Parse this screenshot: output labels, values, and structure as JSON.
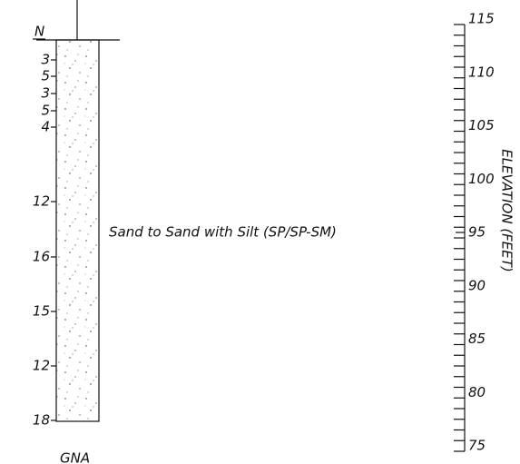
{
  "header": {
    "n_label": "N"
  },
  "blow_counts": [
    "3",
    "5",
    "3",
    "5",
    "4",
    "12",
    "16",
    "15",
    "12",
    "18"
  ],
  "layer": {
    "description": "Sand to Sand with Silt (SP/SP-SM)"
  },
  "elevation": {
    "axis_label": "ELEVATION (FEET)",
    "ticks": [
      "115",
      "110",
      "105",
      "100",
      "95",
      "90",
      "85",
      "80",
      "75"
    ]
  },
  "footer": {
    "note": "GNA"
  }
}
